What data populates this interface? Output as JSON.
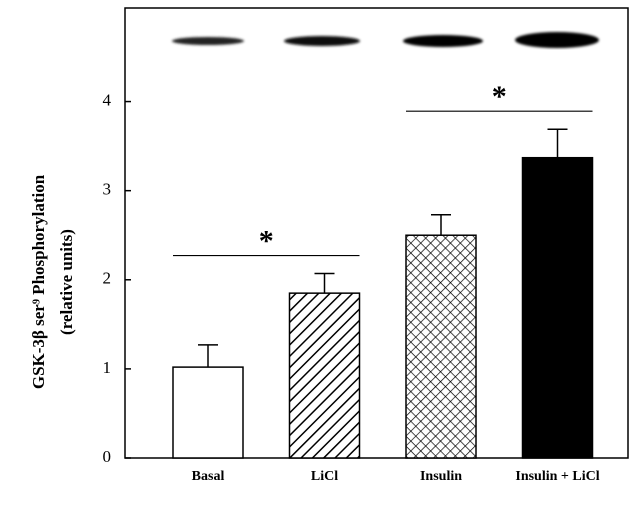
{
  "chart_data": {
    "type": "bar",
    "ylabel": "GSK-3β ser⁹ Phosphorylation",
    "ylabel2": "(relative units)",
    "categories": [
      "Basal",
      "LiCl",
      "Insulin",
      "Insulin + LiCl"
    ],
    "values": [
      1.02,
      1.85,
      2.5,
      3.37
    ],
    "errors": [
      0.25,
      0.22,
      0.23,
      0.32
    ],
    "patterns": [
      "none",
      "hatch",
      "crosshatch",
      "solid"
    ],
    "color": "#000000",
    "ylim": [
      0,
      5.05
    ],
    "yticks": [
      0,
      1,
      2,
      3,
      4
    ],
    "annotations": [
      {
        "text": "*",
        "from": 0,
        "to": 1
      },
      {
        "text": "*",
        "from": 2,
        "to": 3
      }
    ]
  }
}
